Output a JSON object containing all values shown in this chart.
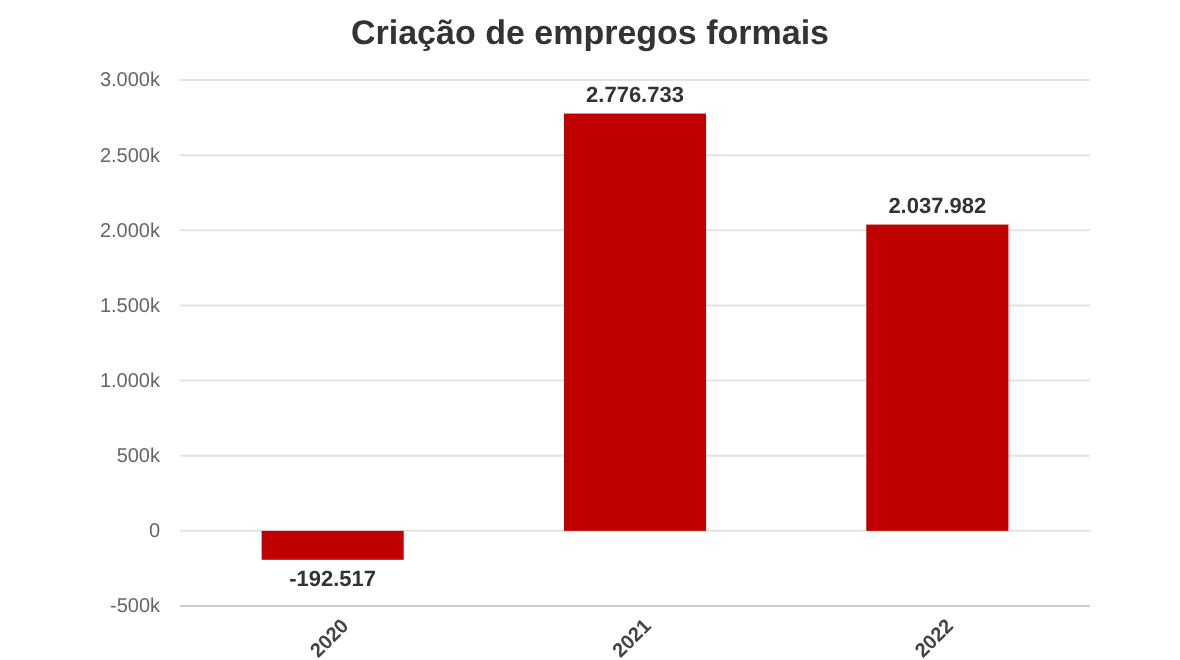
{
  "chart_data": {
    "type": "bar",
    "title": "Criação de empregos formais",
    "categories": [
      "2020",
      "2021",
      "2022"
    ],
    "values": [
      -192517,
      2776733,
      2037982
    ],
    "value_labels": [
      "-192.517",
      "2.776.733",
      "2.037.982"
    ],
    "color": "#c00000",
    "ylim": [
      -500000,
      3000000
    ],
    "yticks": [
      {
        "value": -500000,
        "label": "-500k"
      },
      {
        "value": 0,
        "label": "0"
      },
      {
        "value": 500000,
        "label": "500k"
      },
      {
        "value": 1000000,
        "label": "1.000k"
      },
      {
        "value": 1500000,
        "label": "1.500k"
      },
      {
        "value": 2000000,
        "label": "2.000k"
      },
      {
        "value": 2500000,
        "label": "2.500k"
      },
      {
        "value": 3000000,
        "label": "3.000k"
      }
    ],
    "grid": "y"
  }
}
